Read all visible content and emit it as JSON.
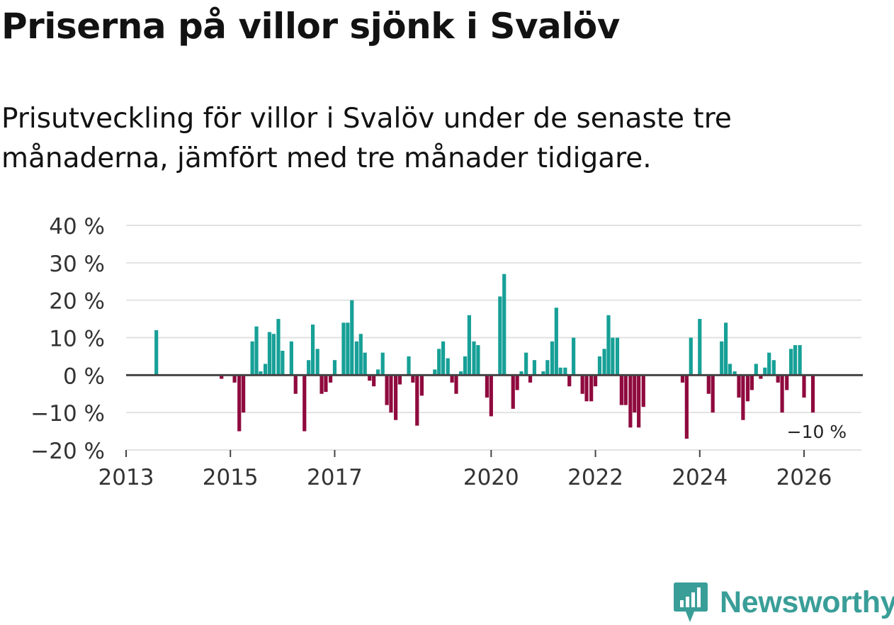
{
  "title": "Priserna på villor sjönk i Svalöv",
  "subtitle": "Prisutveckling för villor i Svalöv under de senaste tre månaderna, jämfört med tre månader tidigare.",
  "brand": "Newsworthy",
  "colors": {
    "positive": "#17a097",
    "negative": "#8f0a3e",
    "grid": "#e2e2e2",
    "zero_line": "#444444",
    "text": "#333333",
    "brand": "#3a9e98"
  },
  "chart_data": {
    "type": "bar",
    "title": "Priserna på villor sjönk i Svalöv",
    "ylabel": "",
    "xlabel": "",
    "ylim": [
      -20,
      40
    ],
    "yticks": [
      -20,
      -10,
      0,
      10,
      20,
      30,
      40
    ],
    "ytick_labels": [
      "−20 %",
      "−10 %",
      "0 %",
      "10 %",
      "20 %",
      "30 %",
      "40 %"
    ],
    "xlim": [
      2013,
      2027.1
    ],
    "xticks": [
      2013,
      2015,
      2017,
      2020,
      2022,
      2024,
      2026
    ],
    "xtick_labels": [
      "2013",
      "2015",
      "2017",
      "2020",
      "2022",
      "2024",
      "2026"
    ],
    "annotation": {
      "text": "−10 %",
      "x": 2026.08,
      "y": -10
    },
    "series": [
      {
        "name": "Prisutveckling",
        "points": [
          [
            2013.58,
            12
          ],
          [
            2014.83,
            -1
          ],
          [
            2015.08,
            -2
          ],
          [
            2015.17,
            -15
          ],
          [
            2015.25,
            -10
          ],
          [
            2015.42,
            9
          ],
          [
            2015.5,
            13
          ],
          [
            2015.58,
            1
          ],
          [
            2015.67,
            3
          ],
          [
            2015.75,
            11.5
          ],
          [
            2015.83,
            11
          ],
          [
            2015.92,
            15
          ],
          [
            2016.0,
            6.5
          ],
          [
            2016.17,
            9
          ],
          [
            2016.25,
            -5
          ],
          [
            2016.42,
            -15
          ],
          [
            2016.5,
            4
          ],
          [
            2016.58,
            13.5
          ],
          [
            2016.67,
            7
          ],
          [
            2016.75,
            -5
          ],
          [
            2016.83,
            -4.5
          ],
          [
            2016.92,
            -2
          ],
          [
            2017.0,
            4
          ],
          [
            2017.17,
            14
          ],
          [
            2017.25,
            14
          ],
          [
            2017.33,
            20
          ],
          [
            2017.42,
            9
          ],
          [
            2017.5,
            11
          ],
          [
            2017.58,
            6
          ],
          [
            2017.67,
            -1.5
          ],
          [
            2017.75,
            -3
          ],
          [
            2017.83,
            1.5
          ],
          [
            2017.92,
            6
          ],
          [
            2018.0,
            -8
          ],
          [
            2018.08,
            -10
          ],
          [
            2018.17,
            -12
          ],
          [
            2018.25,
            -2.5
          ],
          [
            2018.42,
            5
          ],
          [
            2018.5,
            -2
          ],
          [
            2018.58,
            -13.5
          ],
          [
            2018.67,
            -5.5
          ],
          [
            2018.92,
            1.5
          ],
          [
            2019.0,
            7
          ],
          [
            2019.08,
            9
          ],
          [
            2019.17,
            4.5
          ],
          [
            2019.25,
            -2
          ],
          [
            2019.33,
            -5
          ],
          [
            2019.42,
            1
          ],
          [
            2019.5,
            5
          ],
          [
            2019.58,
            16
          ],
          [
            2019.67,
            9
          ],
          [
            2019.75,
            8
          ],
          [
            2019.92,
            -6
          ],
          [
            2020.0,
            -11
          ],
          [
            2020.17,
            21
          ],
          [
            2020.25,
            27
          ],
          [
            2020.42,
            -9
          ],
          [
            2020.5,
            -4
          ],
          [
            2020.58,
            1
          ],
          [
            2020.67,
            6
          ],
          [
            2020.75,
            -2
          ],
          [
            2020.83,
            4
          ],
          [
            2021.0,
            1
          ],
          [
            2021.08,
            4
          ],
          [
            2021.17,
            9
          ],
          [
            2021.25,
            18
          ],
          [
            2021.33,
            2
          ],
          [
            2021.42,
            2
          ],
          [
            2021.5,
            -3
          ],
          [
            2021.58,
            10
          ],
          [
            2021.75,
            -5
          ],
          [
            2021.83,
            -7
          ],
          [
            2021.92,
            -7
          ],
          [
            2022.0,
            -3
          ],
          [
            2022.08,
            5
          ],
          [
            2022.17,
            7
          ],
          [
            2022.25,
            16
          ],
          [
            2022.33,
            10
          ],
          [
            2022.42,
            10
          ],
          [
            2022.5,
            -8
          ],
          [
            2022.58,
            -8
          ],
          [
            2022.67,
            -14
          ],
          [
            2022.75,
            -10
          ],
          [
            2022.83,
            -14
          ],
          [
            2022.92,
            -8.5
          ],
          [
            2023.67,
            -2
          ],
          [
            2023.75,
            -17
          ],
          [
            2023.83,
            10
          ],
          [
            2024.0,
            15
          ],
          [
            2024.17,
            -5
          ],
          [
            2024.25,
            -10
          ],
          [
            2024.42,
            9
          ],
          [
            2024.5,
            14
          ],
          [
            2024.58,
            3
          ],
          [
            2024.67,
            1
          ],
          [
            2024.75,
            -6
          ],
          [
            2024.83,
            -12
          ],
          [
            2024.92,
            -7
          ],
          [
            2025.0,
            -4
          ],
          [
            2025.08,
            3
          ],
          [
            2025.17,
            -1
          ],
          [
            2025.25,
            2
          ],
          [
            2025.33,
            6
          ],
          [
            2025.42,
            4
          ],
          [
            2025.5,
            -2
          ],
          [
            2025.58,
            -10
          ],
          [
            2025.67,
            -4
          ],
          [
            2025.75,
            7
          ],
          [
            2025.83,
            8
          ],
          [
            2025.92,
            8
          ],
          [
            2026.0,
            -6
          ],
          [
            2026.17,
            -10
          ]
        ]
      }
    ]
  }
}
